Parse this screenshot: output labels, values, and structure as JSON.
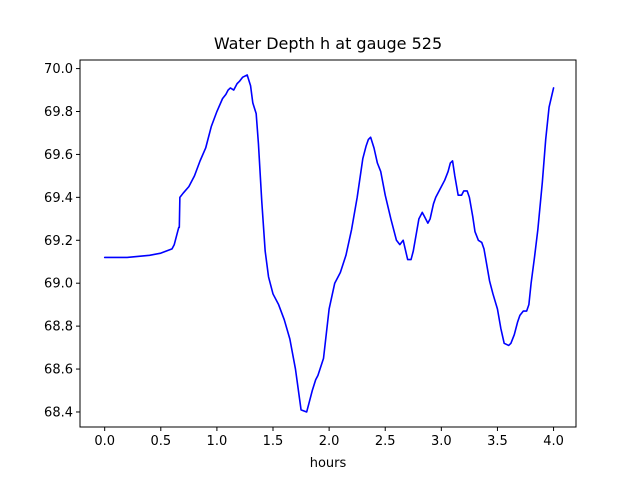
{
  "chart_data": {
    "type": "line",
    "title": "Water Depth h at gauge 525",
    "xlabel": "hours",
    "ylabel": "",
    "xlim": [
      -0.22,
      4.2
    ],
    "ylim": [
      68.33,
      70.04
    ],
    "xticks": [
      0.0,
      0.5,
      1.0,
      1.5,
      2.0,
      2.5,
      3.0,
      3.5,
      4.0
    ],
    "xtick_labels": [
      "0.0",
      "0.5",
      "1.0",
      "1.5",
      "2.0",
      "2.5",
      "3.0",
      "3.5",
      "4.0"
    ],
    "yticks": [
      68.4,
      68.6,
      68.8,
      69.0,
      69.2,
      69.4,
      69.6,
      69.8,
      70.0
    ],
    "ytick_labels": [
      "68.4",
      "68.6",
      "68.8",
      "69.0",
      "69.2",
      "69.4",
      "69.6",
      "69.8",
      "70.0"
    ],
    "grid": false,
    "legend": "none",
    "series": [
      {
        "color": "#0000ff",
        "x": [
          0.0,
          0.2,
          0.4,
          0.5,
          0.6,
          0.62,
          0.65,
          0.66,
          0.665,
          0.67,
          0.7,
          0.75,
          0.8,
          0.85,
          0.9,
          0.95,
          1.0,
          1.05,
          1.08,
          1.1,
          1.12,
          1.15,
          1.18,
          1.2,
          1.23,
          1.27,
          1.3,
          1.32,
          1.35,
          1.37,
          1.4,
          1.43,
          1.46,
          1.5,
          1.55,
          1.6,
          1.65,
          1.7,
          1.75,
          1.8,
          1.82,
          1.85,
          1.88,
          1.9,
          1.95,
          2.0,
          2.05,
          2.1,
          2.15,
          2.2,
          2.25,
          2.3,
          2.33,
          2.35,
          2.37,
          2.4,
          2.43,
          2.46,
          2.5,
          2.55,
          2.6,
          2.63,
          2.66,
          2.7,
          2.73,
          2.75,
          2.78,
          2.8,
          2.83,
          2.85,
          2.88,
          2.9,
          2.93,
          2.95,
          3.0,
          3.03,
          3.06,
          3.08,
          3.1,
          3.12,
          3.15,
          3.18,
          3.2,
          3.23,
          3.25,
          3.28,
          3.3,
          3.33,
          3.36,
          3.38,
          3.4,
          3.43,
          3.46,
          3.5,
          3.53,
          3.56,
          3.6,
          3.62,
          3.65,
          3.68,
          3.7,
          3.73,
          3.76,
          3.78,
          3.8,
          3.83,
          3.86,
          3.9,
          3.93,
          3.96,
          4.0
        ],
        "y": [
          69.12,
          69.12,
          69.13,
          69.14,
          69.16,
          69.18,
          69.24,
          69.26,
          69.26,
          69.4,
          69.42,
          69.45,
          69.5,
          69.57,
          69.63,
          69.73,
          69.8,
          69.86,
          69.88,
          69.9,
          69.91,
          69.9,
          69.93,
          69.94,
          69.96,
          69.97,
          69.92,
          69.84,
          69.79,
          69.65,
          69.38,
          69.15,
          69.03,
          68.95,
          68.9,
          68.83,
          68.74,
          68.6,
          68.41,
          68.4,
          68.44,
          68.5,
          68.55,
          68.57,
          68.65,
          68.88,
          69.0,
          69.05,
          69.13,
          69.25,
          69.4,
          69.58,
          69.64,
          69.67,
          69.68,
          69.63,
          69.56,
          69.52,
          69.41,
          69.3,
          69.2,
          69.18,
          69.2,
          69.11,
          69.11,
          69.15,
          69.24,
          69.3,
          69.33,
          69.31,
          69.28,
          69.3,
          69.37,
          69.4,
          69.45,
          69.48,
          69.52,
          69.56,
          69.57,
          69.5,
          69.41,
          69.41,
          69.43,
          69.43,
          69.4,
          69.31,
          69.24,
          69.2,
          69.19,
          69.16,
          69.1,
          69.01,
          68.95,
          68.88,
          68.79,
          68.72,
          68.71,
          68.72,
          68.76,
          68.82,
          68.85,
          68.87,
          68.87,
          68.9,
          69.0,
          69.12,
          69.25,
          69.47,
          69.67,
          69.82,
          69.91
        ]
      }
    ]
  }
}
